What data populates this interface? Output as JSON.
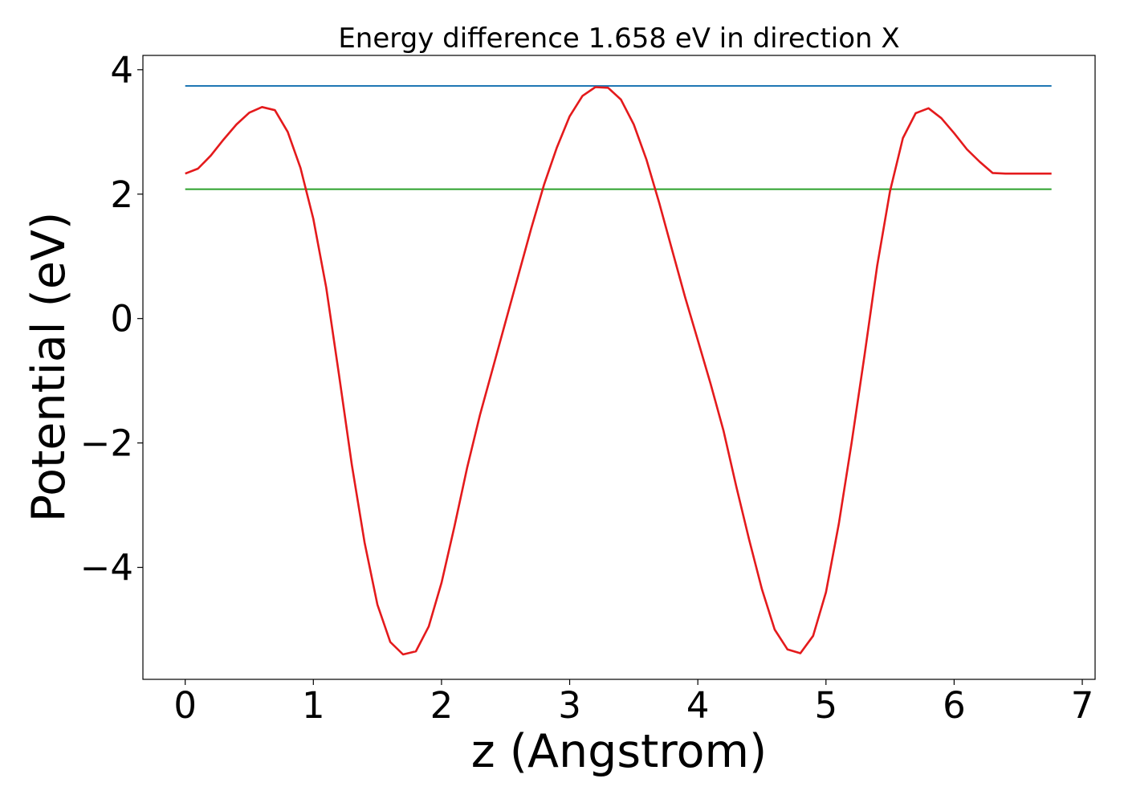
{
  "chart_data": {
    "type": "line",
    "title": "Energy difference 1.658 eV in direction X",
    "xlabel": "z (Angstrom)",
    "ylabel": "Potential (eV)",
    "xlim": [
      -0.33,
      7.1
    ],
    "ylim": [
      -5.8,
      4.23
    ],
    "xticks": [
      0,
      1,
      2,
      3,
      4,
      5,
      6,
      7
    ],
    "xtick_labels": [
      "0",
      "1",
      "2",
      "3",
      "4",
      "5",
      "6",
      "7"
    ],
    "yticks": [
      -4,
      -2,
      0,
      2,
      4
    ],
    "ytick_labels": [
      "−4",
      "−2",
      "0",
      "2",
      "4"
    ],
    "grid": false,
    "series": [
      {
        "color": "#1f77b4",
        "style": "hline",
        "x": [
          0,
          6.76
        ],
        "y": [
          3.74,
          3.74
        ]
      },
      {
        "color": "#2ca02c",
        "style": "hline",
        "x": [
          0,
          6.76
        ],
        "y": [
          2.08,
          2.08
        ]
      },
      {
        "color": "#e41a1c",
        "style": "curve",
        "x": [
          0.0,
          0.1,
          0.2,
          0.3,
          0.4,
          0.5,
          0.6,
          0.7,
          0.8,
          0.9,
          1.0,
          1.1,
          1.2,
          1.3,
          1.4,
          1.5,
          1.6,
          1.7,
          1.8,
          1.9,
          2.0,
          2.1,
          2.2,
          2.3,
          2.4,
          2.5,
          2.6,
          2.7,
          2.8,
          2.9,
          3.0,
          3.1,
          3.2,
          3.3,
          3.4,
          3.5,
          3.6,
          3.7,
          3.8,
          3.9,
          4.0,
          4.1,
          4.2,
          4.3,
          4.4,
          4.5,
          4.6,
          4.7,
          4.8,
          4.9,
          5.0,
          5.1,
          5.2,
          5.3,
          5.4,
          5.5,
          5.6,
          5.7,
          5.8,
          5.9,
          6.0,
          6.1,
          6.2,
          6.3,
          6.4,
          6.5,
          6.6,
          6.76
        ],
        "y": [
          2.33,
          2.41,
          2.62,
          2.88,
          3.12,
          3.31,
          3.4,
          3.35,
          3.0,
          2.42,
          1.6,
          0.5,
          -0.9,
          -2.35,
          -3.6,
          -4.6,
          -5.2,
          -5.4,
          -5.35,
          -4.95,
          -4.25,
          -3.35,
          -2.4,
          -1.55,
          -0.8,
          -0.05,
          0.7,
          1.45,
          2.15,
          2.75,
          3.25,
          3.58,
          3.72,
          3.71,
          3.52,
          3.12,
          2.55,
          1.85,
          1.1,
          0.35,
          -0.35,
          -1.05,
          -1.8,
          -2.7,
          -3.55,
          -4.35,
          -5.0,
          -5.32,
          -5.38,
          -5.1,
          -4.4,
          -3.3,
          -2.0,
          -0.6,
          0.85,
          2.05,
          2.9,
          3.3,
          3.38,
          3.22,
          2.98,
          2.72,
          2.52,
          2.34,
          2.33,
          2.33,
          2.33,
          2.33
        ]
      }
    ]
  }
}
